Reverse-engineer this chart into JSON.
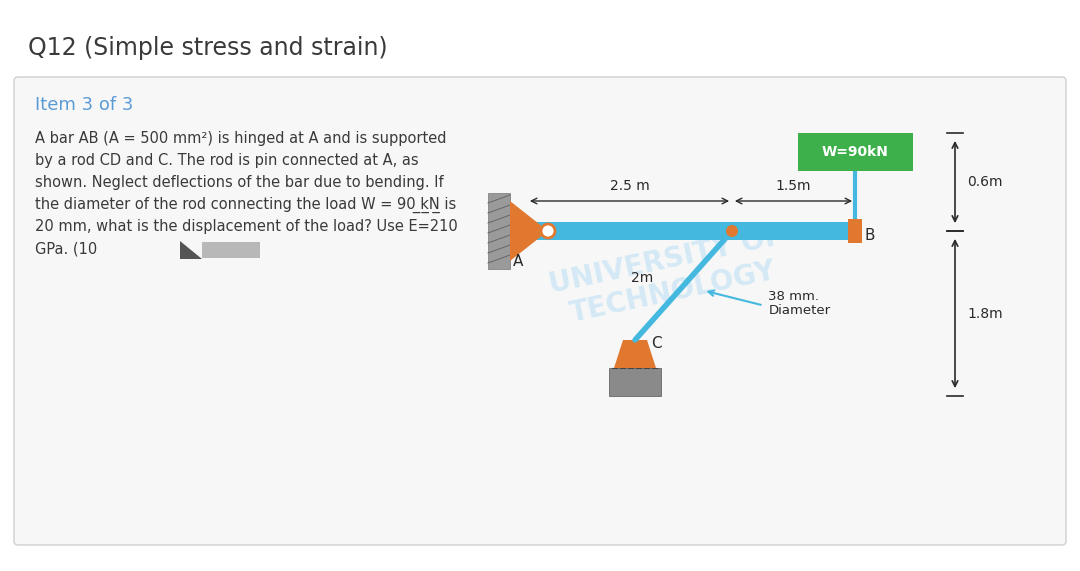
{
  "title": "Q12 (Simple stress and strain)",
  "subtitle": "Item 3 of 3",
  "text_lines": [
    "A bar AB (A = 500 mm²) is hinged at A and is supported",
    "by a rod CD and C. The rod is pin connected at A, as",
    "shown. Neglect deflections of the bar due to bending. If",
    "the diameter of the rod connecting the load W = 90 ̲k̲N̲ is",
    "20 mm, what is the displacement of the load? Use E=210",
    "GPa. (10"
  ],
  "bg_color": "#ffffff",
  "card_bg_color": "#f7f7f7",
  "title_color": "#3a3a3a",
  "subtitle_color": "#5b9bd5",
  "text_color": "#3a3a3a",
  "bar_color": "#45b8e0",
  "support_orange": "#e07830",
  "wall_gray": "#9a9a9a",
  "rod_support_gray": "#8a8a8a",
  "load_green": "#3db04b",
  "dim_color": "#2a2a2a",
  "rod_blue": "#45b8e0",
  "watermark_color": "#d0e8f5"
}
